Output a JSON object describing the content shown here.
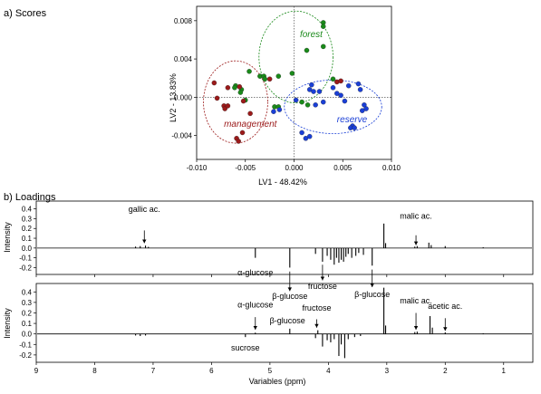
{
  "chart_data": [
    {
      "type": "scatter",
      "panel_label": "a) Scores",
      "xlabel": "LV1 - 48.42%",
      "ylabel": "LV2 - 13.83%",
      "xlim": [
        -0.01,
        0.01
      ],
      "ylim": [
        -0.0065,
        0.0095
      ],
      "xticks": [
        -0.01,
        -0.005,
        0.0,
        0.005,
        0.01
      ],
      "xtick_labels": [
        "-0.010",
        "-0.005",
        "0.000",
        "0.005",
        "0.010"
      ],
      "yticks": [
        -0.004,
        0.0,
        0.004,
        0.008
      ],
      "ytick_labels": [
        "-0.004",
        "0.000",
        "0.004",
        "0.008"
      ],
      "zero_lines": true,
      "groups": [
        {
          "name": "forest",
          "color": "#1a8a1a",
          "ellipse": {
            "cx": 0.0002,
            "cy": 0.0042,
            "rx": 0.0038,
            "ry": 0.0048
          },
          "points": [
            {
              "x": 0.003,
              "y": 0.0078
            },
            {
              "x": 0.003,
              "y": 0.0074
            },
            {
              "x": -0.0046,
              "y": 0.0027
            },
            {
              "x": -0.0035,
              "y": 0.0022
            },
            {
              "x": -0.0031,
              "y": 0.0022
            },
            {
              "x": -0.003,
              "y": 0.0019
            },
            {
              "x": -0.0016,
              "y": 0.0022
            },
            {
              "x": -0.0002,
              "y": 0.0025
            },
            {
              "x": 0.0013,
              "y": 0.0049
            },
            {
              "x": 0.003,
              "y": 0.0053
            },
            {
              "x": 0.004,
              "y": 0.0019
            },
            {
              "x": -0.006,
              "y": 0.0012
            },
            {
              "x": -0.0061,
              "y": 0.001
            },
            {
              "x": -0.0054,
              "y": 0.0008
            },
            {
              "x": -0.0055,
              "y": 0.0005
            },
            {
              "x": -0.005,
              "y": -0.0003
            },
            {
              "x": 0.0008,
              "y": -0.0005
            },
            {
              "x": 0.0014,
              "y": -0.0008
            },
            {
              "x": -0.002,
              "y": -0.001
            },
            {
              "x": -0.0016,
              "y": -0.001
            }
          ]
        },
        {
          "name": "management",
          "color": "#9b1a1a",
          "ellipse": {
            "cx": -0.006,
            "cy": -0.0005,
            "rx": 0.0033,
            "ry": 0.0043
          },
          "points": [
            {
              "x": -0.0082,
              "y": 0.0015
            },
            {
              "x": -0.0079,
              "y": -0.0001
            },
            {
              "x": -0.0072,
              "y": -0.0009
            },
            {
              "x": -0.0071,
              "y": -0.0012
            },
            {
              "x": -0.0068,
              "y": -0.0009
            },
            {
              "x": -0.0068,
              "y": 0.001
            },
            {
              "x": -0.0056,
              "y": 0.0011
            },
            {
              "x": -0.0052,
              "y": -0.0004
            },
            {
              "x": -0.0053,
              "y": -0.0037
            },
            {
              "x": -0.0059,
              "y": -0.0043
            },
            {
              "x": -0.0057,
              "y": -0.0046
            },
            {
              "x": -0.0045,
              "y": -0.0017
            },
            {
              "x": 0.0044,
              "y": 0.0016
            },
            {
              "x": 0.0048,
              "y": 0.0017
            },
            {
              "x": -0.0025,
              "y": 0.0019
            }
          ]
        },
        {
          "name": "reserve",
          "color": "#1a3fd6",
          "ellipse": {
            "cx": 0.004,
            "cy": -0.001,
            "rx": 0.005,
            "ry": 0.0028
          },
          "points": [
            {
              "x": 0.0018,
              "y": 0.0013
            },
            {
              "x": 0.0016,
              "y": 0.0008
            },
            {
              "x": 0.002,
              "y": 0.0006
            },
            {
              "x": 0.0026,
              "y": 0.0006
            },
            {
              "x": 0.004,
              "y": 0.001
            },
            {
              "x": 0.0044,
              "y": 0.0004
            },
            {
              "x": 0.0048,
              "y": 0.0002
            },
            {
              "x": 0.0052,
              "y": -0.0004
            },
            {
              "x": 0.0056,
              "y": 0.0012
            },
            {
              "x": 0.0066,
              "y": 0.0014
            },
            {
              "x": 0.0068,
              "y": 0.0008
            },
            {
              "x": 0.0072,
              "y": -0.0008
            },
            {
              "x": 0.0074,
              "y": -0.0012
            },
            {
              "x": 0.007,
              "y": -0.0014
            },
            {
              "x": 0.006,
              "y": -0.003
            },
            {
              "x": 0.0058,
              "y": -0.0032
            },
            {
              "x": 0.0062,
              "y": -0.0032
            },
            {
              "x": 0.0008,
              "y": -0.0037
            },
            {
              "x": 0.0012,
              "y": -0.0043
            },
            {
              "x": 0.0016,
              "y": -0.0041
            },
            {
              "x": 0.0002,
              "y": -0.0003
            },
            {
              "x": -0.0015,
              "y": -0.0013
            },
            {
              "x": -0.0021,
              "y": -0.0015
            },
            {
              "x": 0.0022,
              "y": -0.0008
            },
            {
              "x": 0.003,
              "y": -0.0005
            }
          ]
        }
      ],
      "group_labels": [
        {
          "name": "forest",
          "x": 0.0006,
          "y": 0.0063
        },
        {
          "name": "management",
          "x": -0.0072,
          "y": -0.0031
        },
        {
          "name": "reserve",
          "x": 0.0044,
          "y": -0.0026
        }
      ]
    },
    {
      "type": "line",
      "panel_label": "b) Loadings",
      "xlabel": "Variables (ppm)",
      "ylabel": "Intensity",
      "xlim": [
        9.0,
        0.5
      ],
      "x_reversed": true,
      "xticks": [
        9,
        8,
        7,
        6,
        5,
        4,
        3,
        2,
        1
      ],
      "xtick_labels": [
        "9",
        "8",
        "7",
        "6",
        "5",
        "4",
        "3",
        "2",
        "1"
      ],
      "subplots": [
        {
          "ylim": [
            -0.27,
            0.48
          ],
          "yticks": [
            -0.2,
            -0.1,
            0.0,
            0.1,
            0.2,
            0.3,
            0.4
          ],
          "ytick_labels": [
            "-0.2",
            "-0.1",
            "0.0",
            "0.1",
            "0.2",
            "0.3",
            "0.4"
          ],
          "peaks": [
            {
              "x": 7.3,
              "y": 0.015
            },
            {
              "x": 7.22,
              "y": 0.02
            },
            {
              "x": 7.13,
              "y": 0.025
            },
            {
              "x": 7.08,
              "y": 0.012
            },
            {
              "x": 5.25,
              "y": -0.1
            },
            {
              "x": 4.66,
              "y": -0.2
            },
            {
              "x": 4.22,
              "y": -0.06
            },
            {
              "x": 4.1,
              "y": -0.14
            },
            {
              "x": 4.02,
              "y": -0.08
            },
            {
              "x": 3.96,
              "y": -0.12
            },
            {
              "x": 3.9,
              "y": -0.17
            },
            {
              "x": 3.86,
              "y": -0.1
            },
            {
              "x": 3.82,
              "y": -0.15
            },
            {
              "x": 3.78,
              "y": -0.12
            },
            {
              "x": 3.74,
              "y": -0.14
            },
            {
              "x": 3.7,
              "y": -0.09
            },
            {
              "x": 3.66,
              "y": -0.06
            },
            {
              "x": 3.6,
              "y": -0.1
            },
            {
              "x": 3.53,
              "y": -0.08
            },
            {
              "x": 3.48,
              "y": -0.05
            },
            {
              "x": 3.4,
              "y": -0.07
            },
            {
              "x": 3.25,
              "y": -0.18
            },
            {
              "x": 3.05,
              "y": 0.25
            },
            {
              "x": 3.02,
              "y": 0.05
            },
            {
              "x": 2.52,
              "y": 0.015
            },
            {
              "x": 2.48,
              "y": 0.02
            },
            {
              "x": 2.28,
              "y": 0.055
            },
            {
              "x": 2.24,
              "y": 0.03
            },
            {
              "x": 2.0,
              "y": 0.02
            },
            {
              "x": 1.35,
              "y": 0.008
            }
          ],
          "annotations": [
            {
              "text": "gallic ac.",
              "x": 7.15,
              "label_y": 0.37,
              "arrow_from": 0.18,
              "arrow_to": 0.05
            },
            {
              "text": "malic ac.",
              "x": 2.5,
              "label_y": 0.3,
              "arrow_from": 0.13,
              "arrow_to": 0.03
            },
            {
              "text": "α-glucose",
              "x": 5.25,
              "label_y": -0.28,
              "arrow_from": null,
              "arrow_to": null
            },
            {
              "text": "β-glucose",
              "x": 4.66,
              "label_y": -0.52,
              "arrow_from": -0.24,
              "arrow_to": -0.44
            },
            {
              "text": "fructose",
              "x": 4.1,
              "label_y": -0.42,
              "arrow_from": -0.17,
              "arrow_to": -0.33
            },
            {
              "text": "β-glucose",
              "x": 3.25,
              "label_y": -0.5,
              "arrow_from": -0.22,
              "arrow_to": -0.4
            }
          ]
        },
        {
          "ylim": [
            -0.27,
            0.48
          ],
          "yticks": [
            -0.2,
            -0.1,
            0.0,
            0.1,
            0.2,
            0.3,
            0.4
          ],
          "ytick_labels": [
            "-0.2",
            "-0.1",
            "0.0",
            "0.1",
            "0.2",
            "0.3",
            "0.4"
          ],
          "peaks": [
            {
              "x": 7.3,
              "y": -0.015
            },
            {
              "x": 7.22,
              "y": -0.02
            },
            {
              "x": 7.13,
              "y": -0.015
            },
            {
              "x": 5.42,
              "y": -0.03
            },
            {
              "x": 5.25,
              "y": 0.012
            },
            {
              "x": 4.66,
              "y": 0.05
            },
            {
              "x": 4.22,
              "y": -0.04
            },
            {
              "x": 4.18,
              "y": 0.035
            },
            {
              "x": 4.1,
              "y": -0.12
            },
            {
              "x": 4.02,
              "y": -0.06
            },
            {
              "x": 3.96,
              "y": -0.08
            },
            {
              "x": 3.9,
              "y": -0.05
            },
            {
              "x": 3.82,
              "y": -0.21
            },
            {
              "x": 3.78,
              "y": -0.1
            },
            {
              "x": 3.72,
              "y": -0.23
            },
            {
              "x": 3.66,
              "y": -0.05
            },
            {
              "x": 3.55,
              "y": -0.03
            },
            {
              "x": 3.45,
              "y": -0.02
            },
            {
              "x": 3.05,
              "y": 0.44
            },
            {
              "x": 3.02,
              "y": 0.08
            },
            {
              "x": 2.52,
              "y": 0.018
            },
            {
              "x": 2.48,
              "y": 0.022
            },
            {
              "x": 2.26,
              "y": 0.17
            },
            {
              "x": 2.22,
              "y": 0.06
            },
            {
              "x": 2.0,
              "y": 0.015
            },
            {
              "x": 1.35,
              "y": 0.006
            }
          ],
          "annotations": [
            {
              "text": "α-glucose",
              "x": 5.25,
              "label_y": 0.25,
              "arrow_from": 0.16,
              "arrow_to": 0.04
            },
            {
              "text": "β-glucose",
              "x": 4.7,
              "label_y": 0.1,
              "arrow_from": null,
              "arrow_to": null
            },
            {
              "text": "fructose",
              "x": 4.2,
              "label_y": 0.22,
              "arrow_from": 0.14,
              "arrow_to": 0.06
            },
            {
              "text": "sucrose",
              "x": 5.42,
              "label_y": -0.16,
              "arrow_from": null,
              "arrow_to": null
            },
            {
              "text": "malic ac.",
              "x": 2.5,
              "label_y": 0.29,
              "arrow_from": 0.2,
              "arrow_to": 0.04
            },
            {
              "text": "acetic ac.",
              "x": 2.0,
              "label_y": 0.24,
              "arrow_from": 0.15,
              "arrow_to": 0.03
            }
          ]
        }
      ]
    }
  ]
}
